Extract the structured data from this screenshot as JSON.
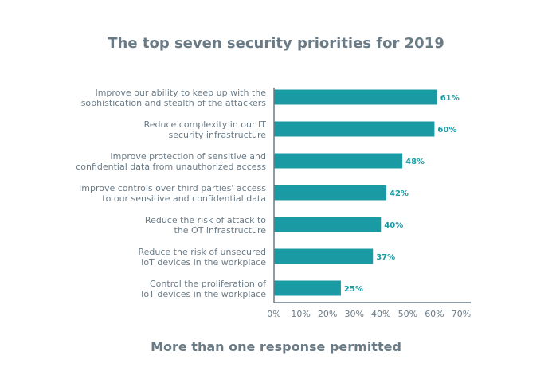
{
  "colors": {
    "bar": "#1a9aa2",
    "text": "#6b7b86",
    "value": "#1a9aa2",
    "axis": "#6b7b86"
  },
  "chart_data": {
    "type": "bar",
    "orientation": "horizontal",
    "title": "The top seven security priorities for 2019",
    "footnote": "More than one response permitted",
    "categories": [
      [
        "Improve our ability to keep up with the",
        "sophistication and stealth of the attackers"
      ],
      [
        "Reduce complexity in our IT",
        "security infrastructure"
      ],
      [
        "Improve protection of sensitive and",
        "confidential data from unauthorized access"
      ],
      [
        "Improve controls over third parties' access",
        "to our sensitive and confidential data"
      ],
      [
        "Reduce the risk of attack to",
        "the OT infrastructure"
      ],
      [
        "Reduce the risk of unsecured",
        "IoT devices in the workplace"
      ],
      [
        "Control the proliferation of",
        "IoT devices in the workplace"
      ]
    ],
    "values": [
      61,
      60,
      48,
      42,
      40,
      37,
      25
    ],
    "value_labels": [
      "61%",
      "60%",
      "48%",
      "42%",
      "40%",
      "37%",
      "25%"
    ],
    "xlim": [
      0,
      70
    ],
    "xticks": [
      "0%",
      "10%",
      "20%",
      "30%",
      "40%",
      "50%",
      "60%",
      "70%"
    ],
    "grid": false
  }
}
